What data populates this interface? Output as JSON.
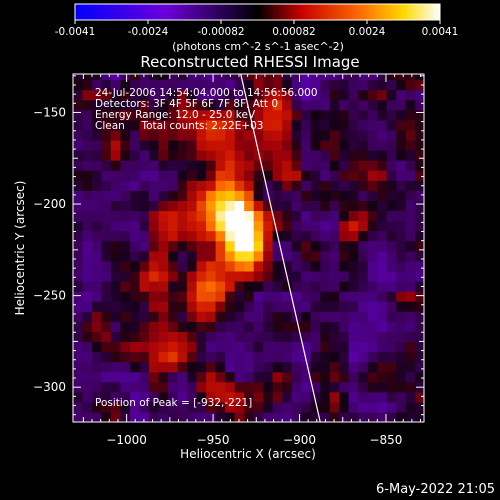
{
  "chart_data": {
    "type": "heatmap",
    "title": "Reconstructed RHESSI Image",
    "xlabel": "Heliocentric X (arcsec)",
    "ylabel": "Heliocentric Y (arcsec)",
    "xlim": [
      -1031,
      -828
    ],
    "ylim": [
      -319,
      -129
    ],
    "x_ticks": [
      -1000,
      -950,
      -900,
      -850
    ],
    "y_ticks": [
      -150,
      -200,
      -250,
      -300
    ],
    "colorbar": {
      "min": -0.0041,
      "max": 0.0041,
      "ticks": [
        "-0.0041",
        "-0.0024",
        "-0.00082",
        "0.00082",
        "0.0024",
        "0.0041"
      ],
      "unit_label": "(photons cm^-2 s^-1 asec^-2)"
    },
    "annotations": [
      "24-Jul-2006 14:54:04.000 to 14:56:56.000",
      "Detectors: 3F 4F 5F 6F 7F 8F, Att 0",
      "Energy Range: 12.0 - 25.0 keV",
      "Clean     Total counts: 2.22E+03"
    ],
    "peak_label": "Position of Peak = [-932,-221]",
    "peak": {
      "x": -932,
      "y": -221
    },
    "limb_line": [
      [
        -934,
        -129
      ],
      [
        -888,
        -319
      ]
    ],
    "source_blobs": [
      {
        "x": -932,
        "y": -221,
        "sx": 9,
        "sy": 14,
        "amp": 0.0041
      },
      {
        "x": -940,
        "y": -200,
        "sx": 10,
        "sy": 12,
        "amp": 0.0028
      },
      {
        "x": -955,
        "y": -250,
        "sx": 9,
        "sy": 12,
        "amp": 0.0026
      },
      {
        "x": -965,
        "y": -210,
        "sx": 12,
        "sy": 10,
        "amp": 0.002
      },
      {
        "x": -950,
        "y": -165,
        "sx": 10,
        "sy": 14,
        "amp": 0.0022
      },
      {
        "x": -920,
        "y": -148,
        "sx": 8,
        "sy": 10,
        "amp": 0.0018
      },
      {
        "x": -975,
        "y": -282,
        "sx": 10,
        "sy": 8,
        "amp": 0.0016
      },
      {
        "x": -1005,
        "y": -175,
        "sx": 7,
        "sy": 7,
        "amp": 0.0014
      },
      {
        "x": -905,
        "y": -185,
        "sx": 6,
        "sy": 10,
        "amp": 0.0012
      },
      {
        "x": -985,
        "y": -240,
        "sx": 8,
        "sy": 8,
        "amp": 0.0012
      },
      {
        "x": -870,
        "y": -215,
        "sx": 6,
        "sy": 8,
        "amp": 0.001
      },
      {
        "x": -945,
        "y": -300,
        "sx": 12,
        "sy": 8,
        "amp": 0.0012
      },
      {
        "x": -1015,
        "y": -270,
        "sx": 6,
        "sy": 10,
        "amp": 0.0008
      }
    ]
  },
  "timestamp": "6-May-2022 21:05"
}
